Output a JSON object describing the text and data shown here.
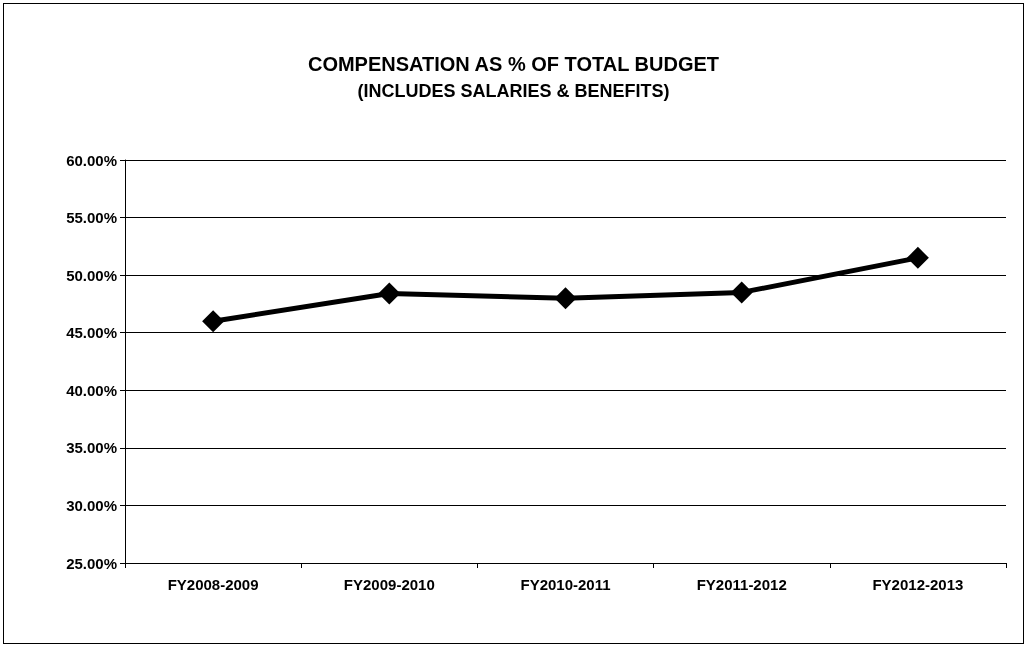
{
  "chart_data": {
    "type": "line",
    "title": "COMPENSATION AS % OF TOTAL BUDGET",
    "subtitle": "(INCLUDES SALARIES & BENEFITS)",
    "categories": [
      "FY2008-2009",
      "FY2009-2010",
      "FY2010-2011",
      "FY2011-2012",
      "FY2012-2013"
    ],
    "series": [
      {
        "color": "#000000",
        "values": [
          46.0,
          48.4,
          48.0,
          48.5,
          51.5
        ]
      }
    ],
    "ylim": [
      25,
      60
    ],
    "yticks": [
      {
        "value": 25,
        "label": "25.00%"
      },
      {
        "value": 30,
        "label": "30.00%"
      },
      {
        "value": 35,
        "label": "35.00%"
      },
      {
        "value": 40,
        "label": "40.00%"
      },
      {
        "value": 45,
        "label": "45.00%"
      },
      {
        "value": 50,
        "label": "50.00%"
      },
      {
        "value": 55,
        "label": "55.00%"
      },
      {
        "value": 60,
        "label": "60.00%"
      }
    ],
    "grid": "y",
    "marker": "diamond",
    "line_style": "solid"
  }
}
